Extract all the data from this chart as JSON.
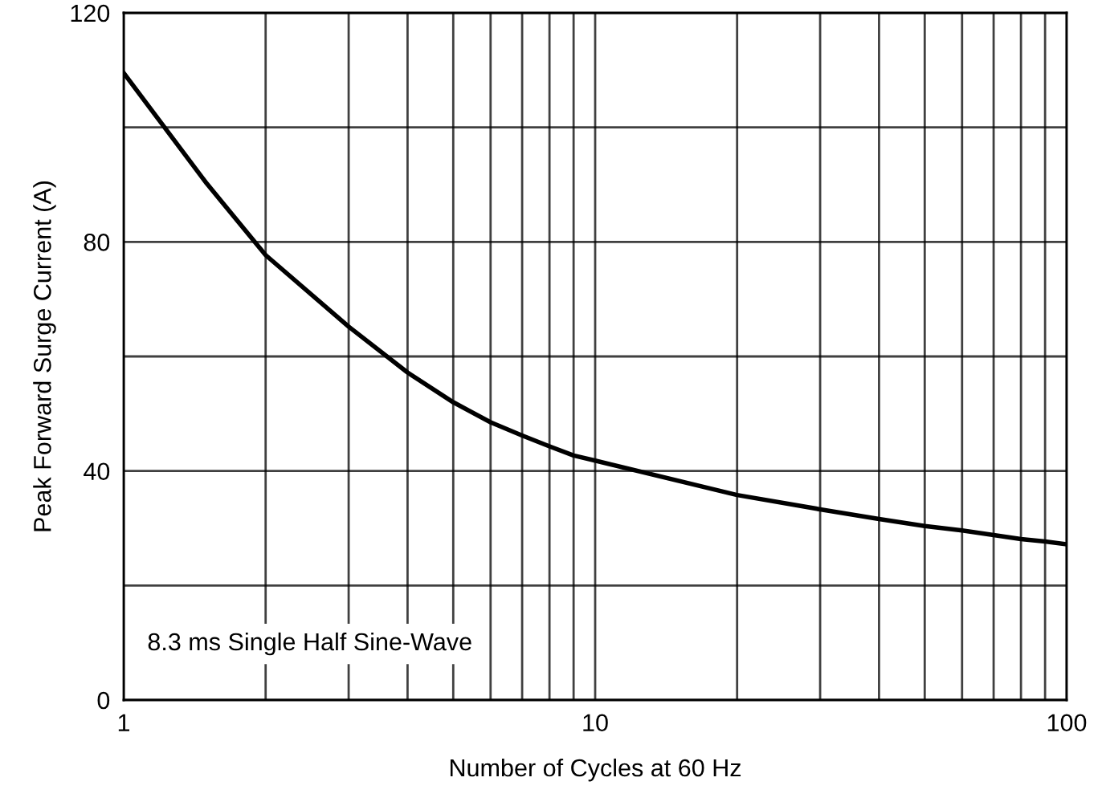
{
  "chart_data": {
    "type": "line",
    "xlabel": "Number of Cycles at 60 Hz",
    "ylabel": "Peak Forward Surge Current (A)",
    "log": "x",
    "x": [
      1,
      1.5,
      2,
      3,
      4,
      5,
      6,
      7,
      8,
      9,
      10,
      20,
      30,
      40,
      50,
      60,
      70,
      80,
      90,
      100
    ],
    "series": [
      {
        "color": "#000000",
        "values": [
          109.5,
          90.2,
          77.7,
          65.2,
          57.2,
          52.0,
          48.5,
          46.2,
          44.3,
          42.7,
          41.8,
          35.8,
          33.3,
          31.6,
          30.4,
          29.6,
          28.8,
          28.1,
          27.7,
          27.2
        ]
      }
    ],
    "xlim": [
      1,
      100
    ],
    "ylim": [
      0,
      120
    ],
    "xticks": [
      1,
      {
        "value": 2,
        "label": null
      },
      {
        "value": 3,
        "label": null
      },
      {
        "value": 4,
        "label": null
      },
      {
        "value": 5,
        "label": null
      },
      {
        "value": 6,
        "label": null
      },
      {
        "value": 7,
        "label": null
      },
      {
        "value": 8,
        "label": null
      },
      {
        "value": 9,
        "label": null
      },
      10,
      {
        "value": 20,
        "label": null
      },
      {
        "value": 30,
        "label": null
      },
      {
        "value": 40,
        "label": null
      },
      {
        "value": 50,
        "label": null
      },
      {
        "value": 60,
        "label": null
      },
      {
        "value": 70,
        "label": null
      },
      {
        "value": 80,
        "label": null
      },
      {
        "value": 90,
        "label": null
      },
      100
    ],
    "yticks": [
      0,
      {
        "value": 20,
        "label": null
      },
      40,
      {
        "value": 60,
        "label": null
      },
      80,
      {
        "value": 100,
        "label": null
      },
      120
    ],
    "grid": true,
    "marker": "none",
    "line_style": "solid",
    "annotations": [
      "8.3 ms Single Half Sine-Wave"
    ]
  }
}
